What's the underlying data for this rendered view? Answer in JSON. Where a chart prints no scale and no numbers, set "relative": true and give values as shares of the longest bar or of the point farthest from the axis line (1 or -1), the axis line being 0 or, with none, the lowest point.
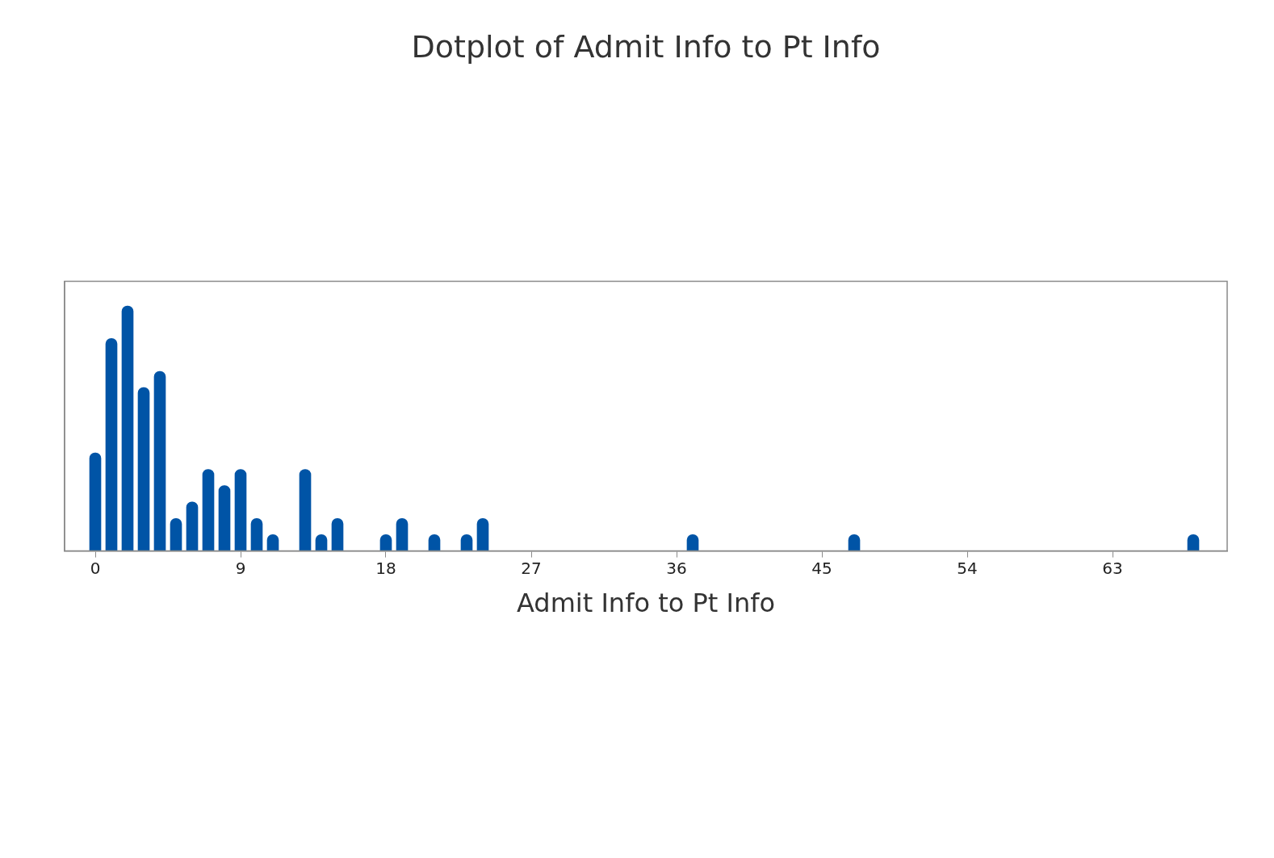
{
  "chart_data": {
    "type": "bar",
    "title": "Dotplot of Admit Info to Pt Info",
    "xlabel": "Admit Info to Pt Info",
    "relative": true,
    "series": [
      {
        "color": "#0054a6",
        "x": [
          0,
          1,
          2,
          3,
          4,
          5,
          6,
          7,
          8,
          9,
          10,
          11,
          13,
          14,
          15,
          18,
          19,
          21,
          23,
          24,
          37,
          47,
          68
        ],
        "values": [
          0.4,
          0.867,
          1,
          0.667,
          0.733,
          0.133,
          0.2,
          0.333,
          0.267,
          0.333,
          0.133,
          0.067,
          0.333,
          0.067,
          0.133,
          0.067,
          0.133,
          0.067,
          0.067,
          0.133,
          0.067,
          0.067,
          0.067
        ]
      }
    ],
    "xlim": [
      -1.9,
      70.1
    ],
    "xticks": [
      0,
      9,
      18,
      27,
      36,
      45,
      54,
      63
    ],
    "tick_labels": "x"
  }
}
